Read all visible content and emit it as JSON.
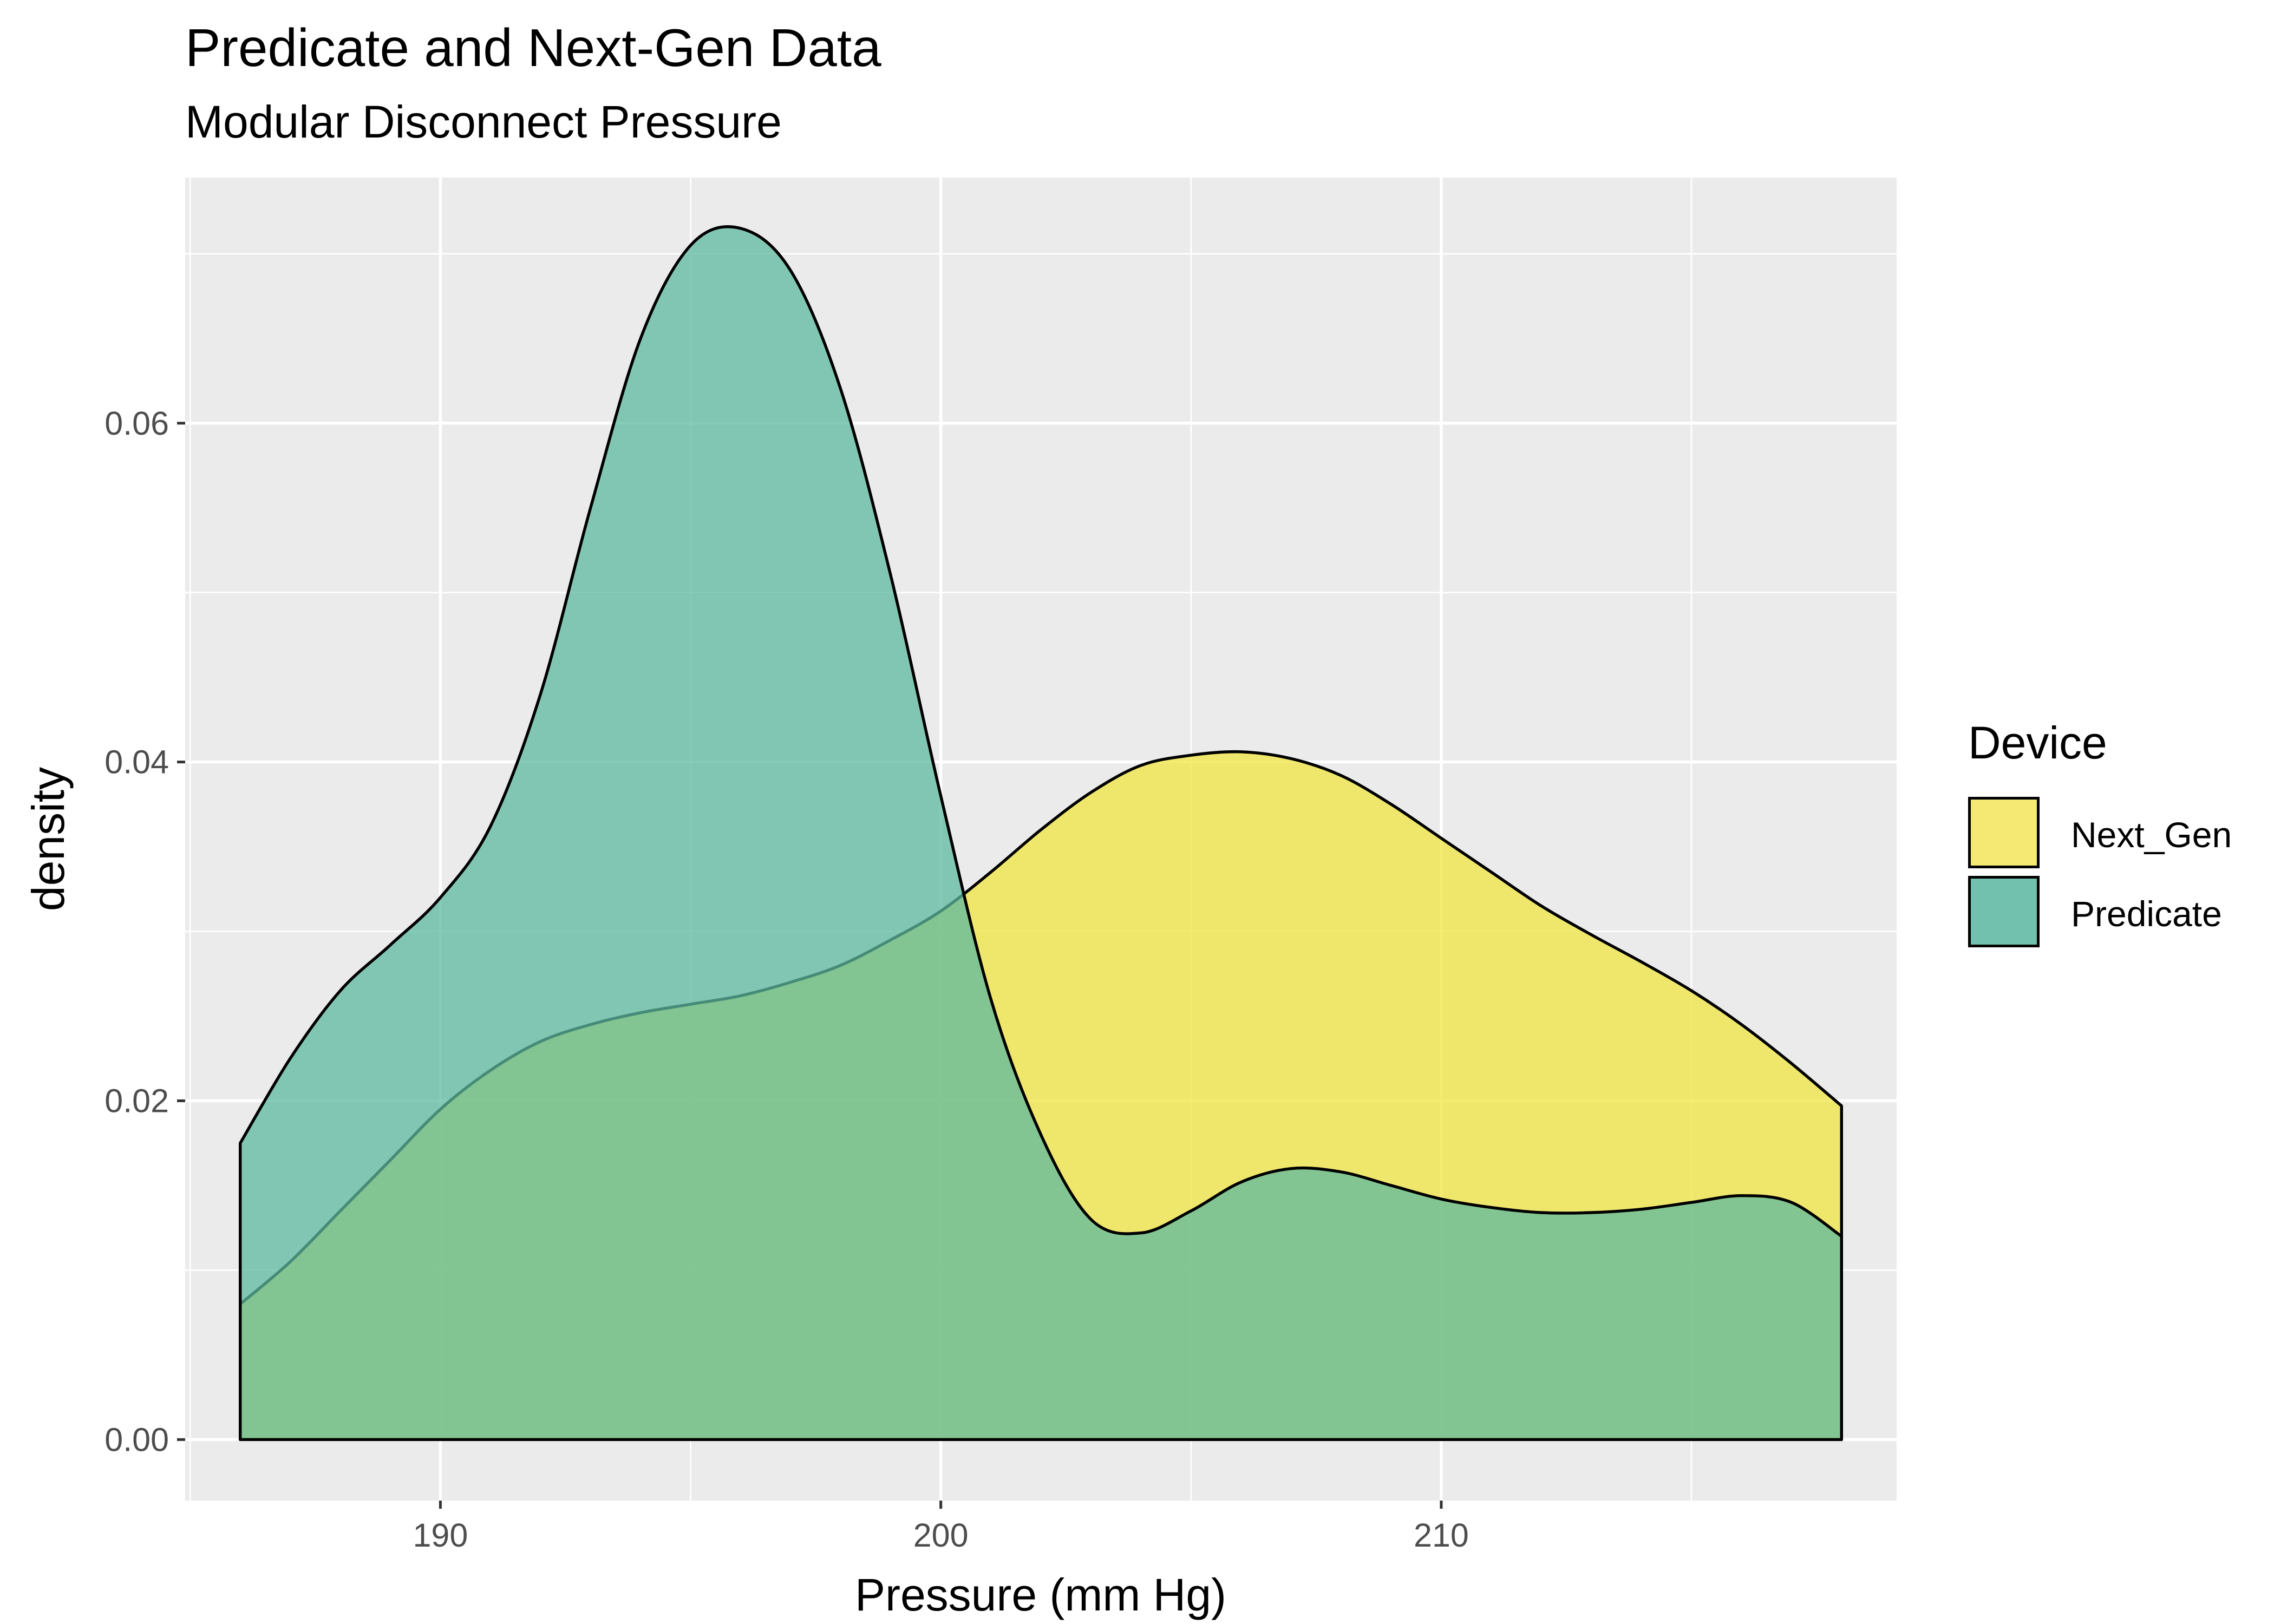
{
  "title": "Predicate and Next-Gen Data",
  "subtitle": "Modular Disconnect Pressure",
  "colors": {
    "panel_background": "#ebebeb",
    "grid": "#ffffff",
    "Next_Gen": "#f0e442",
    "Predicate": "#5dba9f",
    "overlap": "#7bc07d",
    "outline": "#000000"
  },
  "chart_data": {
    "type": "area",
    "subtype": "density",
    "title": "Predicate and Next-Gen Data",
    "subtitle": "Modular Disconnect Pressure",
    "xlabel": "Pressure (mm Hg)",
    "ylabel": "density",
    "xlim": [
      184.9,
      219.1
    ],
    "ylim": [
      -0.0036,
      0.0745
    ],
    "x_ticks": [
      190,
      200,
      210
    ],
    "x_tick_labels": [
      "190",
      "200",
      "210"
    ],
    "y_ticks": [
      0,
      0.02,
      0.04,
      0.06
    ],
    "y_tick_labels": [
      "0.00",
      "0.02",
      "0.04",
      "0.06"
    ],
    "grid": true,
    "legend": {
      "title": "Device",
      "position": "right",
      "entries": [
        "Next_Gen",
        "Predicate"
      ]
    },
    "series": [
      {
        "name": "Predicate",
        "x": [
          186.0,
          187.0,
          188.0,
          189.0,
          190.0,
          191.0,
          192.0,
          193.0,
          194.0,
          195.0,
          196.0,
          197.0,
          198.0,
          199.0,
          200.0,
          201.0,
          202.0,
          203.0,
          204.0,
          205.0,
          206.0,
          207.0,
          208.0,
          209.0,
          210.0,
          211.0,
          212.0,
          213.0,
          214.0,
          215.0,
          216.0,
          217.0,
          218.0
        ],
        "y": [
          0.0175,
          0.0225,
          0.0265,
          0.0292,
          0.032,
          0.0362,
          0.044,
          0.055,
          0.065,
          0.0705,
          0.0715,
          0.069,
          0.062,
          0.051,
          0.038,
          0.026,
          0.018,
          0.013,
          0.0122,
          0.0135,
          0.0152,
          0.016,
          0.0158,
          0.015,
          0.0142,
          0.0137,
          0.0134,
          0.0134,
          0.0136,
          0.014,
          0.0144,
          0.014,
          0.012
        ]
      },
      {
        "name": "Next_Gen",
        "x": [
          186.0,
          187.0,
          188.0,
          189.0,
          190.0,
          191.0,
          192.0,
          193.0,
          194.0,
          195.0,
          196.0,
          197.0,
          198.0,
          199.0,
          200.0,
          201.0,
          202.0,
          203.0,
          204.0,
          205.0,
          206.0,
          207.0,
          208.0,
          209.0,
          210.0,
          211.0,
          212.0,
          213.0,
          214.0,
          215.0,
          216.0,
          217.0,
          218.0
        ],
        "y": [
          0.008,
          0.0105,
          0.0135,
          0.0165,
          0.0195,
          0.0218,
          0.0235,
          0.0245,
          0.0252,
          0.0257,
          0.0262,
          0.027,
          0.028,
          0.0295,
          0.0312,
          0.0335,
          0.036,
          0.0382,
          0.0398,
          0.0404,
          0.0406,
          0.0402,
          0.0392,
          0.0375,
          0.0355,
          0.0335,
          0.0315,
          0.0298,
          0.0282,
          0.0265,
          0.0245,
          0.0222,
          0.0197
        ]
      }
    ]
  }
}
